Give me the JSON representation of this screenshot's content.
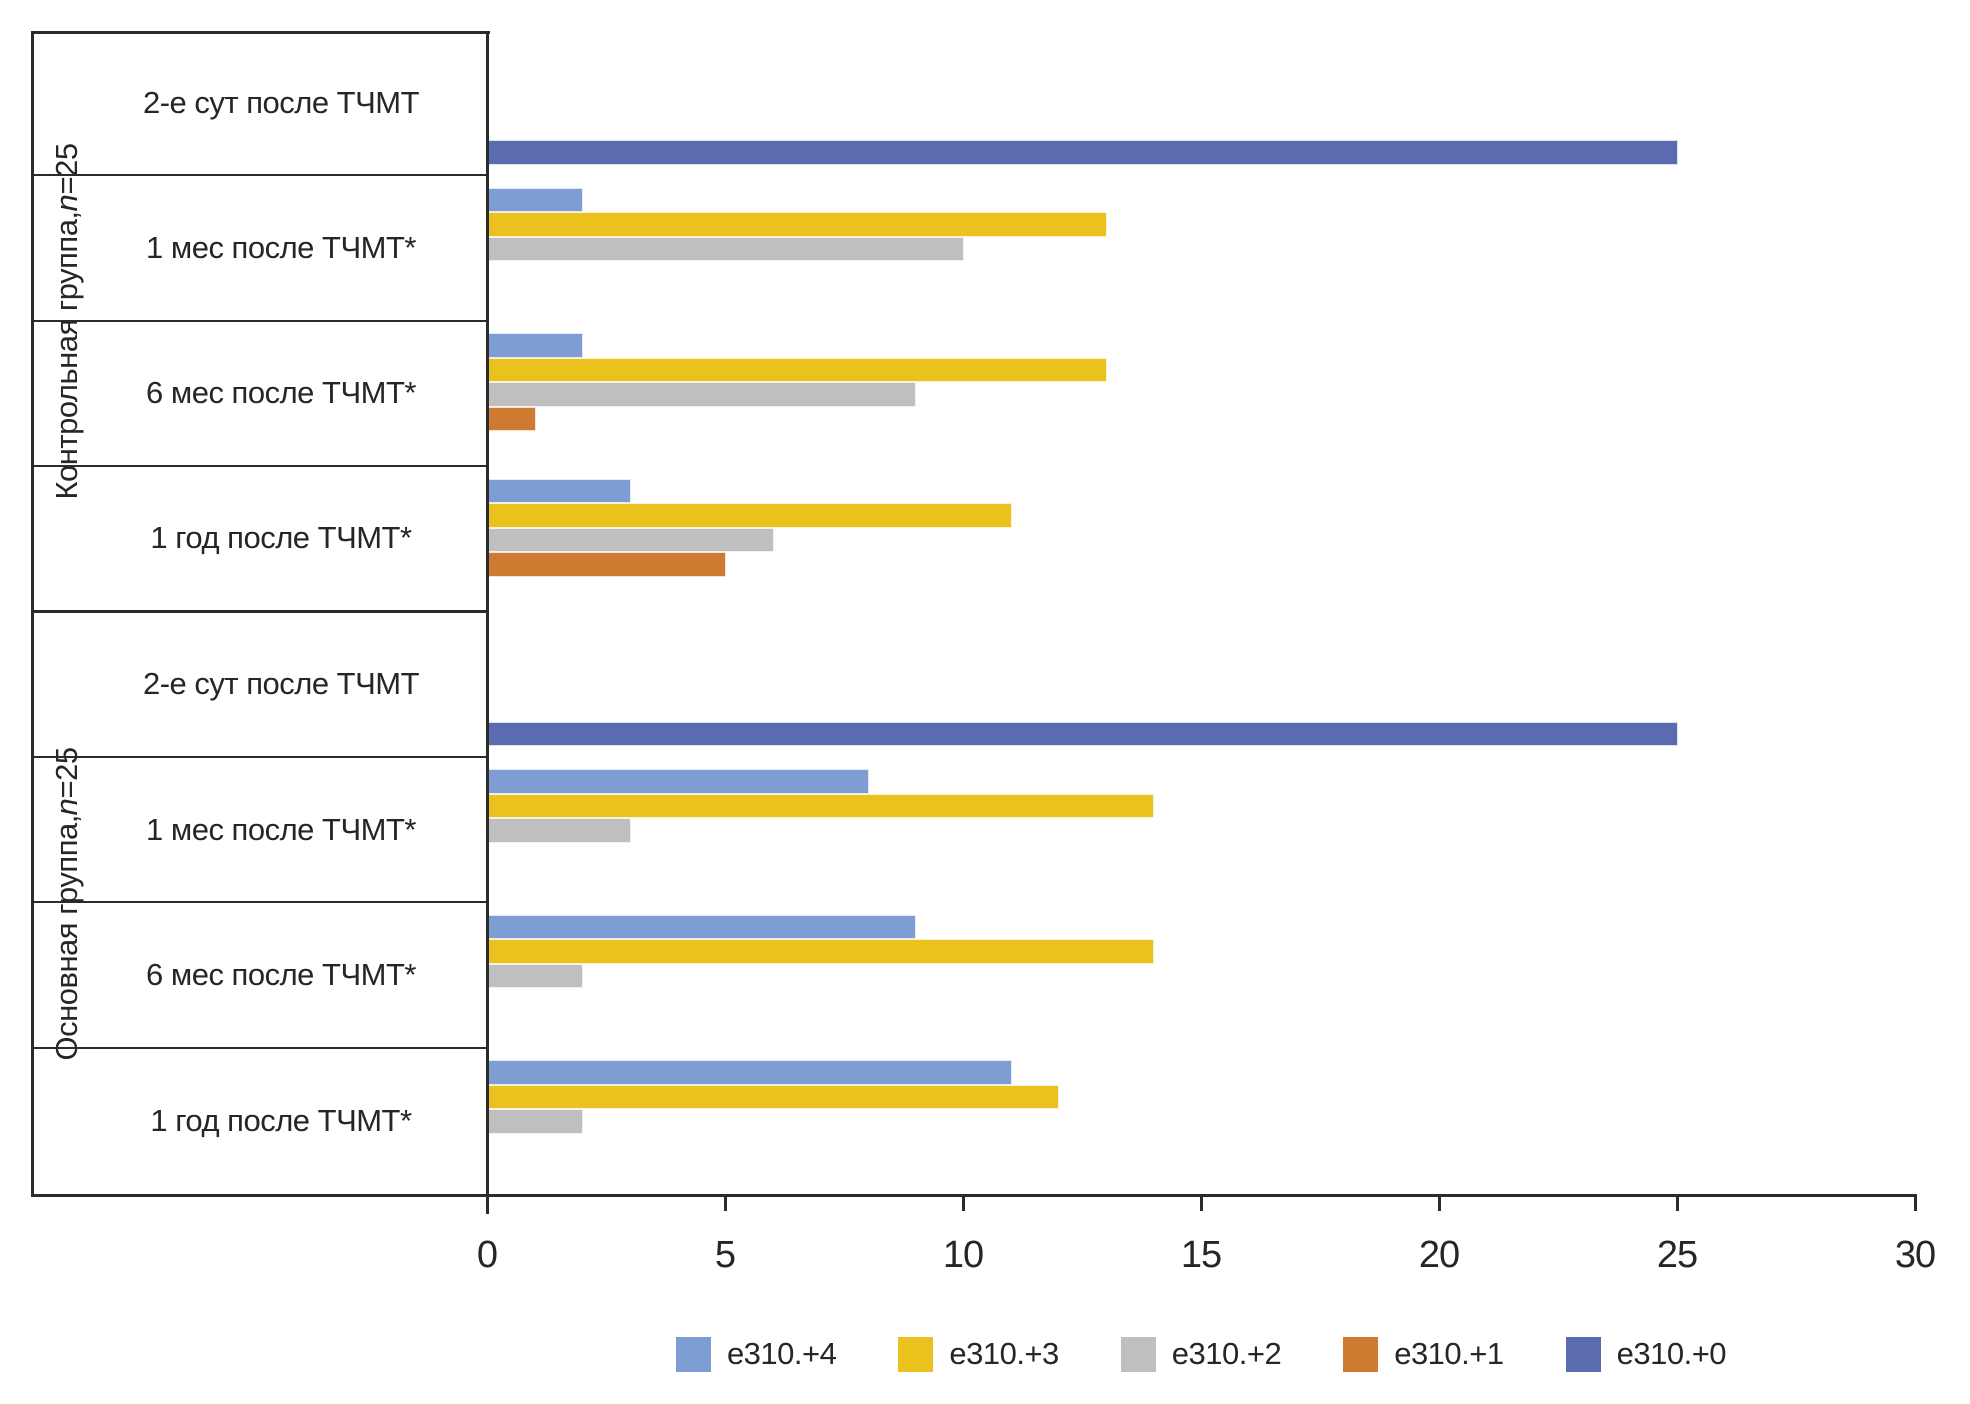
{
  "chart_data": {
    "type": "bar",
    "orientation": "horizontal",
    "title": "",
    "xlabel": "",
    "ylabel": "",
    "grid": false,
    "x_axis": {
      "min": 0,
      "max": 30,
      "ticks": [
        "0",
        "5",
        "10",
        "15",
        "20",
        "25",
        "30"
      ]
    },
    "legend": {
      "position": "bottom",
      "entries": [
        {
          "label": "e310.+4",
          "color": "#7E9DD2"
        },
        {
          "label": "e310.+3",
          "color": "#EBC11E"
        },
        {
          "label": "e310.+2",
          "color": "#BFBFBF"
        },
        {
          "label": "e310.+1",
          "color": "#CE7A30"
        },
        {
          "label": "e310.+0",
          "color": "#5A6BB0"
        }
      ]
    },
    "series_order_note": "values arrays follow legend order: e310.+4, e310.+3, e310.+2, e310.+1, e310.+0",
    "groups": [
      {
        "label_main": "Контрольная группа, ",
        "label_var": "n",
        "label_value": "=25",
        "categories": [
          {
            "label": "2-е сут после ТЧМТ",
            "values": [
              0,
              0,
              0,
              0,
              25
            ]
          },
          {
            "label": "1 мес после ТЧМТ*",
            "values": [
              2,
              13,
              10,
              0,
              0
            ]
          },
          {
            "label": "6 мес после ТЧМТ*",
            "values": [
              2,
              13,
              9,
              1,
              0
            ]
          },
          {
            "label": "1 год после ТЧМТ*",
            "values": [
              3,
              11,
              6,
              5,
              0
            ]
          }
        ]
      },
      {
        "label_main": "Основная группа, ",
        "label_var": "n",
        "label_value": "=25",
        "categories": [
          {
            "label": "2-е сут после ТЧМТ",
            "values": [
              0,
              0,
              0,
              0,
              25
            ]
          },
          {
            "label": "1 мес после ТЧМТ*",
            "values": [
              8,
              14,
              3,
              0,
              0
            ]
          },
          {
            "label": "6 мес после ТЧМТ*",
            "values": [
              9,
              14,
              2,
              0,
              0
            ]
          },
          {
            "label": "1 год после ТЧМТ*",
            "values": [
              11,
              12,
              2,
              0,
              0
            ]
          }
        ]
      }
    ]
  }
}
